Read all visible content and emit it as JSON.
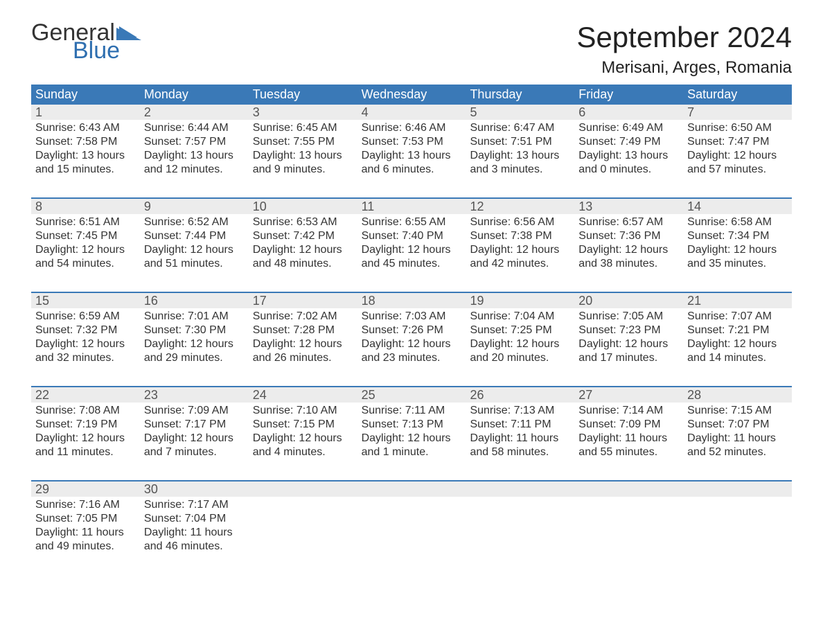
{
  "logo": {
    "line1": "General",
    "line2": "Blue",
    "accent_color": "#2f6fb0",
    "flag_color": "#3a79b7"
  },
  "title": "September 2024",
  "location": "Merisani, Arges, Romania",
  "colors": {
    "header_bg": "#3a79b7",
    "header_text": "#ffffff",
    "daynum_bg": "#ececec",
    "text": "#333333",
    "background": "#ffffff"
  },
  "typography": {
    "title_fontsize": 42,
    "location_fontsize": 24,
    "header_fontsize": 18,
    "body_fontsize": 16
  },
  "day_headers": [
    "Sunday",
    "Monday",
    "Tuesday",
    "Wednesday",
    "Thursday",
    "Friday",
    "Saturday"
  ],
  "weeks": [
    [
      {
        "n": "1",
        "sr": "Sunrise: 6:43 AM",
        "ss": "Sunset: 7:58 PM",
        "dl": "Daylight: 13 hours and 15 minutes."
      },
      {
        "n": "2",
        "sr": "Sunrise: 6:44 AM",
        "ss": "Sunset: 7:57 PM",
        "dl": "Daylight: 13 hours and 12 minutes."
      },
      {
        "n": "3",
        "sr": "Sunrise: 6:45 AM",
        "ss": "Sunset: 7:55 PM",
        "dl": "Daylight: 13 hours and 9 minutes."
      },
      {
        "n": "4",
        "sr": "Sunrise: 6:46 AM",
        "ss": "Sunset: 7:53 PM",
        "dl": "Daylight: 13 hours and 6 minutes."
      },
      {
        "n": "5",
        "sr": "Sunrise: 6:47 AM",
        "ss": "Sunset: 7:51 PM",
        "dl": "Daylight: 13 hours and 3 minutes."
      },
      {
        "n": "6",
        "sr": "Sunrise: 6:49 AM",
        "ss": "Sunset: 7:49 PM",
        "dl": "Daylight: 13 hours and 0 minutes."
      },
      {
        "n": "7",
        "sr": "Sunrise: 6:50 AM",
        "ss": "Sunset: 7:47 PM",
        "dl": "Daylight: 12 hours and 57 minutes."
      }
    ],
    [
      {
        "n": "8",
        "sr": "Sunrise: 6:51 AM",
        "ss": "Sunset: 7:45 PM",
        "dl": "Daylight: 12 hours and 54 minutes."
      },
      {
        "n": "9",
        "sr": "Sunrise: 6:52 AM",
        "ss": "Sunset: 7:44 PM",
        "dl": "Daylight: 12 hours and 51 minutes."
      },
      {
        "n": "10",
        "sr": "Sunrise: 6:53 AM",
        "ss": "Sunset: 7:42 PM",
        "dl": "Daylight: 12 hours and 48 minutes."
      },
      {
        "n": "11",
        "sr": "Sunrise: 6:55 AM",
        "ss": "Sunset: 7:40 PM",
        "dl": "Daylight: 12 hours and 45 minutes."
      },
      {
        "n": "12",
        "sr": "Sunrise: 6:56 AM",
        "ss": "Sunset: 7:38 PM",
        "dl": "Daylight: 12 hours and 42 minutes."
      },
      {
        "n": "13",
        "sr": "Sunrise: 6:57 AM",
        "ss": "Sunset: 7:36 PM",
        "dl": "Daylight: 12 hours and 38 minutes."
      },
      {
        "n": "14",
        "sr": "Sunrise: 6:58 AM",
        "ss": "Sunset: 7:34 PM",
        "dl": "Daylight: 12 hours and 35 minutes."
      }
    ],
    [
      {
        "n": "15",
        "sr": "Sunrise: 6:59 AM",
        "ss": "Sunset: 7:32 PM",
        "dl": "Daylight: 12 hours and 32 minutes."
      },
      {
        "n": "16",
        "sr": "Sunrise: 7:01 AM",
        "ss": "Sunset: 7:30 PM",
        "dl": "Daylight: 12 hours and 29 minutes."
      },
      {
        "n": "17",
        "sr": "Sunrise: 7:02 AM",
        "ss": "Sunset: 7:28 PM",
        "dl": "Daylight: 12 hours and 26 minutes."
      },
      {
        "n": "18",
        "sr": "Sunrise: 7:03 AM",
        "ss": "Sunset: 7:26 PM",
        "dl": "Daylight: 12 hours and 23 minutes."
      },
      {
        "n": "19",
        "sr": "Sunrise: 7:04 AM",
        "ss": "Sunset: 7:25 PM",
        "dl": "Daylight: 12 hours and 20 minutes."
      },
      {
        "n": "20",
        "sr": "Sunrise: 7:05 AM",
        "ss": "Sunset: 7:23 PM",
        "dl": "Daylight: 12 hours and 17 minutes."
      },
      {
        "n": "21",
        "sr": "Sunrise: 7:07 AM",
        "ss": "Sunset: 7:21 PM",
        "dl": "Daylight: 12 hours and 14 minutes."
      }
    ],
    [
      {
        "n": "22",
        "sr": "Sunrise: 7:08 AM",
        "ss": "Sunset: 7:19 PM",
        "dl": "Daylight: 12 hours and 11 minutes."
      },
      {
        "n": "23",
        "sr": "Sunrise: 7:09 AM",
        "ss": "Sunset: 7:17 PM",
        "dl": "Daylight: 12 hours and 7 minutes."
      },
      {
        "n": "24",
        "sr": "Sunrise: 7:10 AM",
        "ss": "Sunset: 7:15 PM",
        "dl": "Daylight: 12 hours and 4 minutes."
      },
      {
        "n": "25",
        "sr": "Sunrise: 7:11 AM",
        "ss": "Sunset: 7:13 PM",
        "dl": "Daylight: 12 hours and 1 minute."
      },
      {
        "n": "26",
        "sr": "Sunrise: 7:13 AM",
        "ss": "Sunset: 7:11 PM",
        "dl": "Daylight: 11 hours and 58 minutes."
      },
      {
        "n": "27",
        "sr": "Sunrise: 7:14 AM",
        "ss": "Sunset: 7:09 PM",
        "dl": "Daylight: 11 hours and 55 minutes."
      },
      {
        "n": "28",
        "sr": "Sunrise: 7:15 AM",
        "ss": "Sunset: 7:07 PM",
        "dl": "Daylight: 11 hours and 52 minutes."
      }
    ],
    [
      {
        "n": "29",
        "sr": "Sunrise: 7:16 AM",
        "ss": "Sunset: 7:05 PM",
        "dl": "Daylight: 11 hours and 49 minutes."
      },
      {
        "n": "30",
        "sr": "Sunrise: 7:17 AM",
        "ss": "Sunset: 7:04 PM",
        "dl": "Daylight: 11 hours and 46 minutes."
      },
      {
        "n": "",
        "sr": "",
        "ss": "",
        "dl": ""
      },
      {
        "n": "",
        "sr": "",
        "ss": "",
        "dl": ""
      },
      {
        "n": "",
        "sr": "",
        "ss": "",
        "dl": ""
      },
      {
        "n": "",
        "sr": "",
        "ss": "",
        "dl": ""
      },
      {
        "n": "",
        "sr": "",
        "ss": "",
        "dl": ""
      }
    ]
  ]
}
